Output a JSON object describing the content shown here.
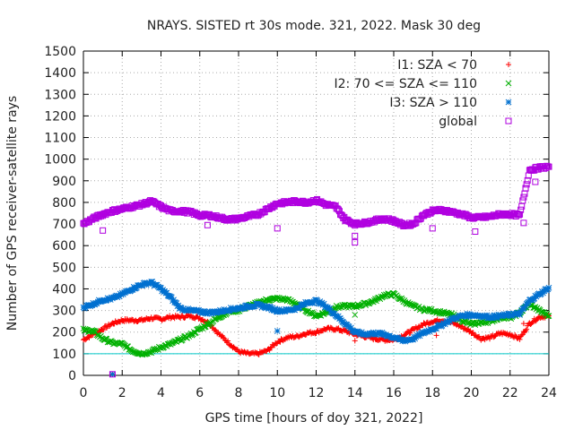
{
  "chart_data": {
    "type": "scatter",
    "title": "NRAYS. SISTED rt 30s mode. 321, 2022. Mask 30 deg",
    "xlabel": "GPS time [hours of doy 321, 2022]",
    "ylabel": "Number of GPS receiver-satellite rays",
    "xlim": [
      0,
      24
    ],
    "ylim": [
      0,
      1500
    ],
    "xticks": [
      "0",
      "2",
      "4",
      "6",
      "8",
      "10",
      "12",
      "14",
      "16",
      "18",
      "20",
      "22",
      "24"
    ],
    "yticks": [
      "0",
      "100",
      "200",
      "300",
      "400",
      "500",
      "600",
      "700",
      "800",
      "900",
      "1000",
      "1100",
      "1200",
      "1300",
      "1400",
      "1500"
    ],
    "grid": true,
    "legend_position": "top-right",
    "reference_line": {
      "y": 100,
      "color": "#00c8c8"
    },
    "series": [
      {
        "name": "I1: SZA < 70",
        "marker": "+",
        "color": "#ff0000",
        "x": [
          0,
          0.5,
          1,
          1.5,
          2,
          2.5,
          3,
          3.5,
          4,
          4.5,
          5,
          5.5,
          6,
          6.5,
          7,
          7.5,
          8,
          8.5,
          9,
          9.5,
          10,
          10.5,
          11,
          11.5,
          12,
          12.5,
          13,
          13.5,
          14,
          14.5,
          15,
          15.5,
          16,
          16.5,
          17,
          17.5,
          18,
          18.5,
          19,
          19.5,
          20,
          20.5,
          21,
          21.5,
          22,
          22.5,
          23,
          23.5,
          24
        ],
        "y": [
          165,
          190,
          215,
          240,
          255,
          255,
          255,
          265,
          260,
          270,
          270,
          275,
          265,
          240,
          190,
          150,
          110,
          100,
          100,
          115,
          155,
          175,
          180,
          195,
          200,
          215,
          215,
          205,
          190,
          180,
          170,
          165,
          165,
          185,
          210,
          235,
          250,
          255,
          245,
          225,
          200,
          170,
          175,
          195,
          190,
          170,
          240,
          270,
          275
        ],
        "outliers": [
          [
            1.5,
            5
          ],
          [
            14,
            160
          ],
          [
            18.2,
            185
          ],
          [
            22.7,
            240
          ]
        ]
      },
      {
        "name": "I2: 70 <= SZA <= 110",
        "marker": "x",
        "color": "#00b000",
        "x": [
          0,
          0.5,
          1,
          1.5,
          2,
          2.5,
          3,
          3.5,
          4,
          4.5,
          5,
          5.5,
          6,
          6.5,
          7,
          7.5,
          8,
          8.5,
          9,
          9.5,
          10,
          10.5,
          11,
          11.5,
          12,
          12.5,
          13,
          13.5,
          14,
          14.5,
          15,
          15.5,
          16,
          16.5,
          17,
          17.5,
          18,
          18.5,
          19,
          19.5,
          20,
          20.5,
          21,
          21.5,
          22,
          22.5,
          23,
          23.5,
          24
        ],
        "y": [
          210,
          205,
          170,
          150,
          145,
          115,
          100,
          110,
          130,
          145,
          165,
          185,
          215,
          240,
          270,
          295,
          300,
          320,
          335,
          350,
          355,
          350,
          330,
          300,
          275,
          290,
          315,
          320,
          320,
          330,
          345,
          370,
          375,
          345,
          320,
          305,
          300,
          290,
          280,
          255,
          235,
          245,
          250,
          270,
          265,
          290,
          330,
          300,
          275
        ],
        "outliers": [
          [
            1.5,
            5
          ],
          [
            6.5,
            240
          ],
          [
            14,
            280
          ],
          [
            22.6,
            300
          ]
        ]
      },
      {
        "name": "I3: SZA > 110",
        "marker": "*",
        "color": "#0070d0",
        "x": [
          0,
          0.5,
          1,
          1.5,
          2,
          2.5,
          3,
          3.5,
          4,
          4.5,
          5,
          5.5,
          6,
          6.5,
          7,
          7.5,
          8,
          8.5,
          9,
          9.5,
          10,
          10.5,
          11,
          11.5,
          12,
          12.5,
          13,
          13.5,
          14,
          14.5,
          15,
          15.5,
          16,
          16.5,
          17,
          17.5,
          18,
          18.5,
          19,
          19.5,
          20,
          20.5,
          21,
          21.5,
          22,
          22.5,
          23,
          23.5,
          24
        ],
        "y": [
          315,
          330,
          350,
          355,
          375,
          400,
          420,
          430,
          400,
          360,
          310,
          300,
          295,
          290,
          295,
          305,
          310,
          320,
          325,
          315,
          300,
          300,
          310,
          335,
          345,
          320,
          280,
          240,
          200,
          190,
          195,
          190,
          175,
          160,
          170,
          195,
          215,
          235,
          260,
          275,
          280,
          275,
          270,
          275,
          280,
          285,
          345,
          375,
          405
        ],
        "outliers": [
          [
            1.5,
            5
          ],
          [
            10,
            205
          ]
        ]
      },
      {
        "name": "global",
        "marker": "square",
        "color": "#b000e0",
        "x": [
          0,
          0.5,
          1,
          1.5,
          2,
          2.5,
          3,
          3.5,
          4,
          4.5,
          5,
          5.5,
          6,
          6.5,
          7,
          7.5,
          8,
          8.5,
          9,
          9.5,
          10,
          10.5,
          11,
          11.5,
          12,
          12.5,
          13,
          13.5,
          14,
          14.5,
          15,
          15.5,
          16,
          16.5,
          17,
          17.5,
          18,
          18.5,
          19,
          19.5,
          20,
          20.5,
          21,
          21.5,
          22,
          22.5,
          23,
          23.5,
          24
        ],
        "y": [
          700,
          725,
          745,
          760,
          770,
          780,
          790,
          805,
          780,
          760,
          760,
          755,
          740,
          740,
          730,
          720,
          725,
          735,
          745,
          770,
          795,
          800,
          805,
          800,
          810,
          790,
          780,
          720,
          700,
          705,
          715,
          725,
          715,
          695,
          700,
          740,
          760,
          765,
          755,
          745,
          730,
          730,
          735,
          745,
          745,
          740,
          950,
          960,
          965
        ],
        "outliers": [
          [
            1.5,
            5
          ],
          [
            1,
            670
          ],
          [
            6.4,
            695
          ],
          [
            10,
            680
          ],
          [
            14,
            615
          ],
          [
            14,
            645
          ],
          [
            18,
            680
          ],
          [
            20.2,
            665
          ],
          [
            22.7,
            705
          ],
          [
            22.8,
            865
          ],
          [
            23.3,
            895
          ]
        ]
      }
    ]
  }
}
